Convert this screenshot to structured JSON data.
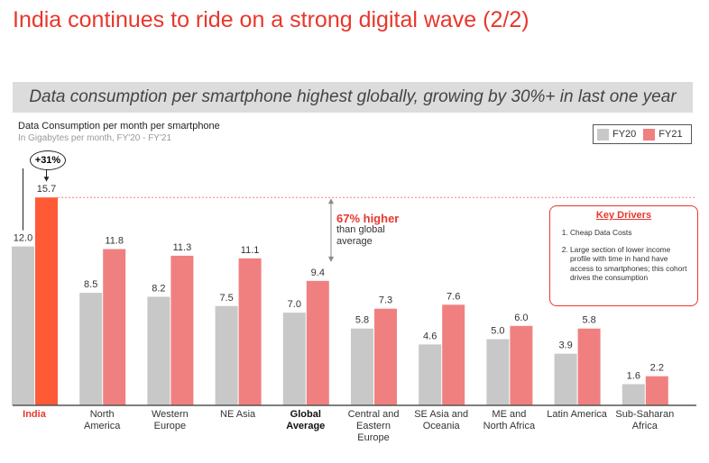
{
  "page": {
    "title": "India continues to ride on a strong digital wave (2/2)",
    "banner": "Data consumption per smartphone highest globally, growing by 30%+ in last one year"
  },
  "chart_data": {
    "type": "bar",
    "title": "Data Consumption per month per smartphone",
    "subtitle": "In Gigabytes per month, FY'20 - FY'21",
    "categories": [
      "India",
      "North America",
      "Western Europe",
      "NE Asia",
      "Global Average",
      "Central and Eastern Europe",
      "SE Asia and Oceania",
      "ME and North Africa",
      "Latin America",
      "Sub-Saharan Africa"
    ],
    "category_lines": [
      [
        "India"
      ],
      [
        "North",
        "America"
      ],
      [
        "Western",
        "Europe"
      ],
      [
        "NE Asia"
      ],
      [
        "Global",
        "Average"
      ],
      [
        "Central and",
        "Eastern",
        "Europe"
      ],
      [
        "SE Asia and",
        "Oceania"
      ],
      [
        "ME and",
        "North Africa"
      ],
      [
        "Latin America"
      ],
      [
        "Sub-Saharan",
        "Africa"
      ]
    ],
    "series": [
      {
        "name": "FY20",
        "values": [
          12.0,
          8.5,
          8.2,
          7.5,
          7.0,
          5.8,
          4.6,
          5.0,
          3.9,
          1.6
        ]
      },
      {
        "name": "FY21",
        "values": [
          15.7,
          11.8,
          11.3,
          11.1,
          9.4,
          7.3,
          7.6,
          6.0,
          5.8,
          2.2
        ]
      }
    ],
    "ylim": [
      0,
      16
    ],
    "legend": [
      "FY20",
      "FY21"
    ],
    "annotations": {
      "growth_label": "+31%",
      "callout_headline": "67% higher",
      "callout_line1": "than global",
      "callout_line2": "average"
    }
  },
  "colors": {
    "title": "#e8372c",
    "fy20": "#c8c8c8",
    "fy21": "#f08080",
    "india_fy21": "#ff5a36",
    "axis": "#555555"
  },
  "key_drivers": {
    "heading": "Key Drivers",
    "items": [
      "Cheap Data Costs",
      "Large section of lower income profile with time in hand have access to smartphones; this cohort drives the consumption"
    ]
  }
}
